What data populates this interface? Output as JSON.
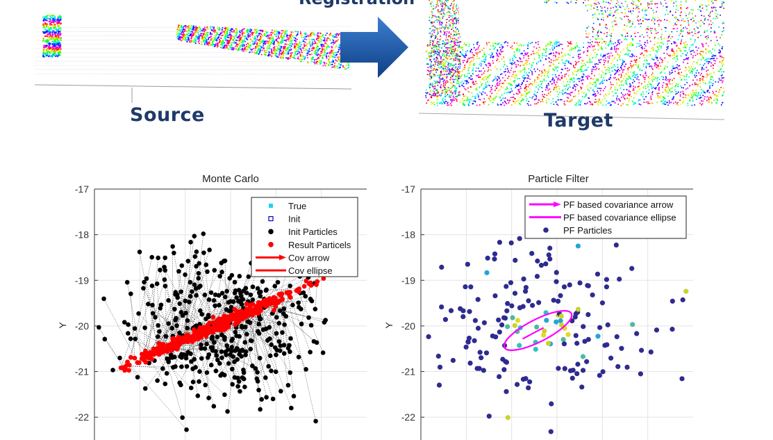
{
  "heading_fragment": "Registration",
  "source_caption": "Source",
  "target_caption": "Target",
  "colors": {
    "navy": "#1f3a68",
    "arrow_blue": "#1b5fae",
    "red": "#ff0000",
    "magenta": "#ff00ff",
    "particle_blue": "#2e2b8f"
  },
  "chart_data": [
    {
      "type": "scatter",
      "title": "Monte Carlo",
      "xlabel": "",
      "ylabel": "Y",
      "ylim": [
        -22.5,
        -17
      ],
      "yticks": [
        -17,
        -18,
        -19,
        -20,
        -21,
        -22
      ],
      "xlim": [
        0,
        1
      ],
      "grid": true,
      "legend_position": "top-right",
      "legend": [
        "True",
        "Init",
        "Init Particles",
        "Result Particels",
        "Cov arrow",
        "Cov ellipse"
      ],
      "init_particle_count": 420,
      "result_trend": {
        "from": [
          0.1,
          -20.9
        ],
        "to": [
          0.83,
          -19.0
        ]
      }
    },
    {
      "type": "scatter",
      "title": "Particle Filter",
      "xlabel": "",
      "ylabel": "Y",
      "ylim": [
        -22.5,
        -17
      ],
      "yticks": [
        -17,
        -18,
        -19,
        -20,
        -21,
        -22
      ],
      "xlim": [
        0,
        1
      ],
      "grid": true,
      "legend_position": "top-right",
      "legend": [
        "PF based covariance arrow",
        "PF based covariance ellipse",
        "PF Particles"
      ],
      "particle_count": 190,
      "ellipse": {
        "center": [
          0.43,
          -20.1
        ],
        "note_major_axis_tilt": true
      }
    }
  ]
}
